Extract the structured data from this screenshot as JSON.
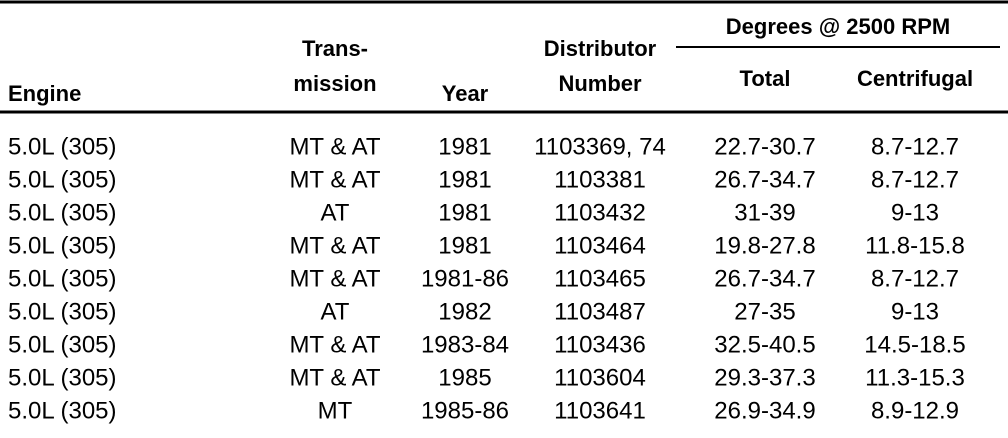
{
  "table": {
    "group_header": "Degrees @ 2500 RPM",
    "headers": [
      [
        "Engine"
      ],
      [
        "Trans-",
        "mission"
      ],
      [
        "Year"
      ],
      [
        "Distributor",
        "Number"
      ],
      [
        "Total"
      ],
      [
        "Centrifugal"
      ]
    ],
    "rows": [
      [
        "5.0L (305)",
        "MT & AT",
        "1981",
        "1103369, 74",
        "22.7-30.7",
        "8.7-12.7"
      ],
      [
        "5.0L (305)",
        "MT & AT",
        "1981",
        "1103381",
        "26.7-34.7",
        "8.7-12.7"
      ],
      [
        "5.0L (305)",
        "AT",
        "1981",
        "1103432",
        "31-39",
        "9-13"
      ],
      [
        "5.0L (305)",
        "MT & AT",
        "1981",
        "1103464",
        "19.8-27.8",
        "11.8-15.8"
      ],
      [
        "5.0L (305)",
        "MT & AT",
        "1981-86",
        "1103465",
        "26.7-34.7",
        "8.7-12.7"
      ],
      [
        "5.0L (305)",
        "AT",
        "1982",
        "1103487",
        "27-35",
        "9-13"
      ],
      [
        "5.0L (305)",
        "MT & AT",
        "1983-84",
        "1103436",
        "32.5-40.5",
        "14.5-18.5"
      ],
      [
        "5.0L (305)",
        "MT & AT",
        "1985",
        "1103604",
        "29.3-37.3",
        "11.3-15.3"
      ],
      [
        "5.0L (305)",
        "MT",
        "1985-86",
        "1103641",
        "26.9-34.9",
        "8.9-12.9"
      ]
    ]
  }
}
